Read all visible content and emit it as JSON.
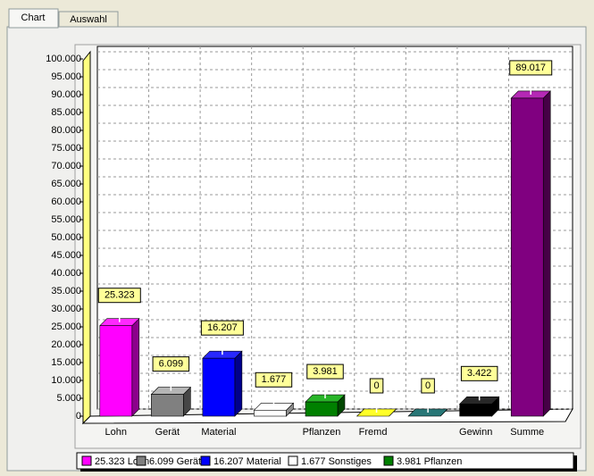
{
  "tabs": [
    "Chart",
    "Auswahl"
  ],
  "chart_data": {
    "type": "bar3d",
    "categories": [
      "Lohn",
      "Gerät",
      "Material",
      null,
      "Pflanzen",
      "Fremd",
      null,
      "Gewinn",
      "Summe"
    ],
    "values": [
      25323,
      6099,
      16207,
      1677,
      3981,
      0,
      0,
      3422,
      89017
    ],
    "value_labels": [
      "25.323",
      "6.099",
      "16.207",
      "1.677",
      "3.981",
      "0",
      "0",
      "3.422",
      "89.017"
    ],
    "colors": [
      "#ff00ff",
      "#808080",
      "#0000ff",
      "#ffffff",
      "#008000",
      "#c8c800",
      "#004848",
      "#000000",
      "#800080"
    ],
    "ylim": [
      0,
      100000
    ],
    "yticks": [
      0,
      {
        "value": 5000,
        "label": "5.000"
      },
      {
        "value": 10000,
        "label": "10.000"
      },
      {
        "value": 15000,
        "label": "15.000"
      },
      {
        "value": 20000,
        "label": "20.000"
      },
      {
        "value": 25000,
        "label": "25.000"
      },
      {
        "value": 30000,
        "label": "30.000"
      },
      {
        "value": 35000,
        "label": "35.000"
      },
      {
        "value": 40000,
        "label": "40.000"
      },
      {
        "value": 45000,
        "label": "45.000"
      },
      {
        "value": 50000,
        "label": "50.000"
      },
      {
        "value": 55000,
        "label": "55.000"
      },
      {
        "value": 60000,
        "label": "60.000"
      },
      {
        "value": 65000,
        "label": "65.000"
      },
      {
        "value": 70000,
        "label": "70.000"
      },
      {
        "value": 75000,
        "label": "75.000"
      },
      {
        "value": 80000,
        "label": "80.000"
      },
      {
        "value": 85000,
        "label": "85.000"
      },
      {
        "value": 90000,
        "label": "90.000"
      },
      {
        "value": 95000,
        "label": "95.000"
      },
      {
        "value": 100000,
        "label": "100.000"
      }
    ],
    "grid": true,
    "legend": [
      "25.323 Lohn",
      "6.099 Gerät",
      "16.207 Material",
      "1.677 Sonstiges",
      "3.981 Pflanzen"
    ]
  }
}
